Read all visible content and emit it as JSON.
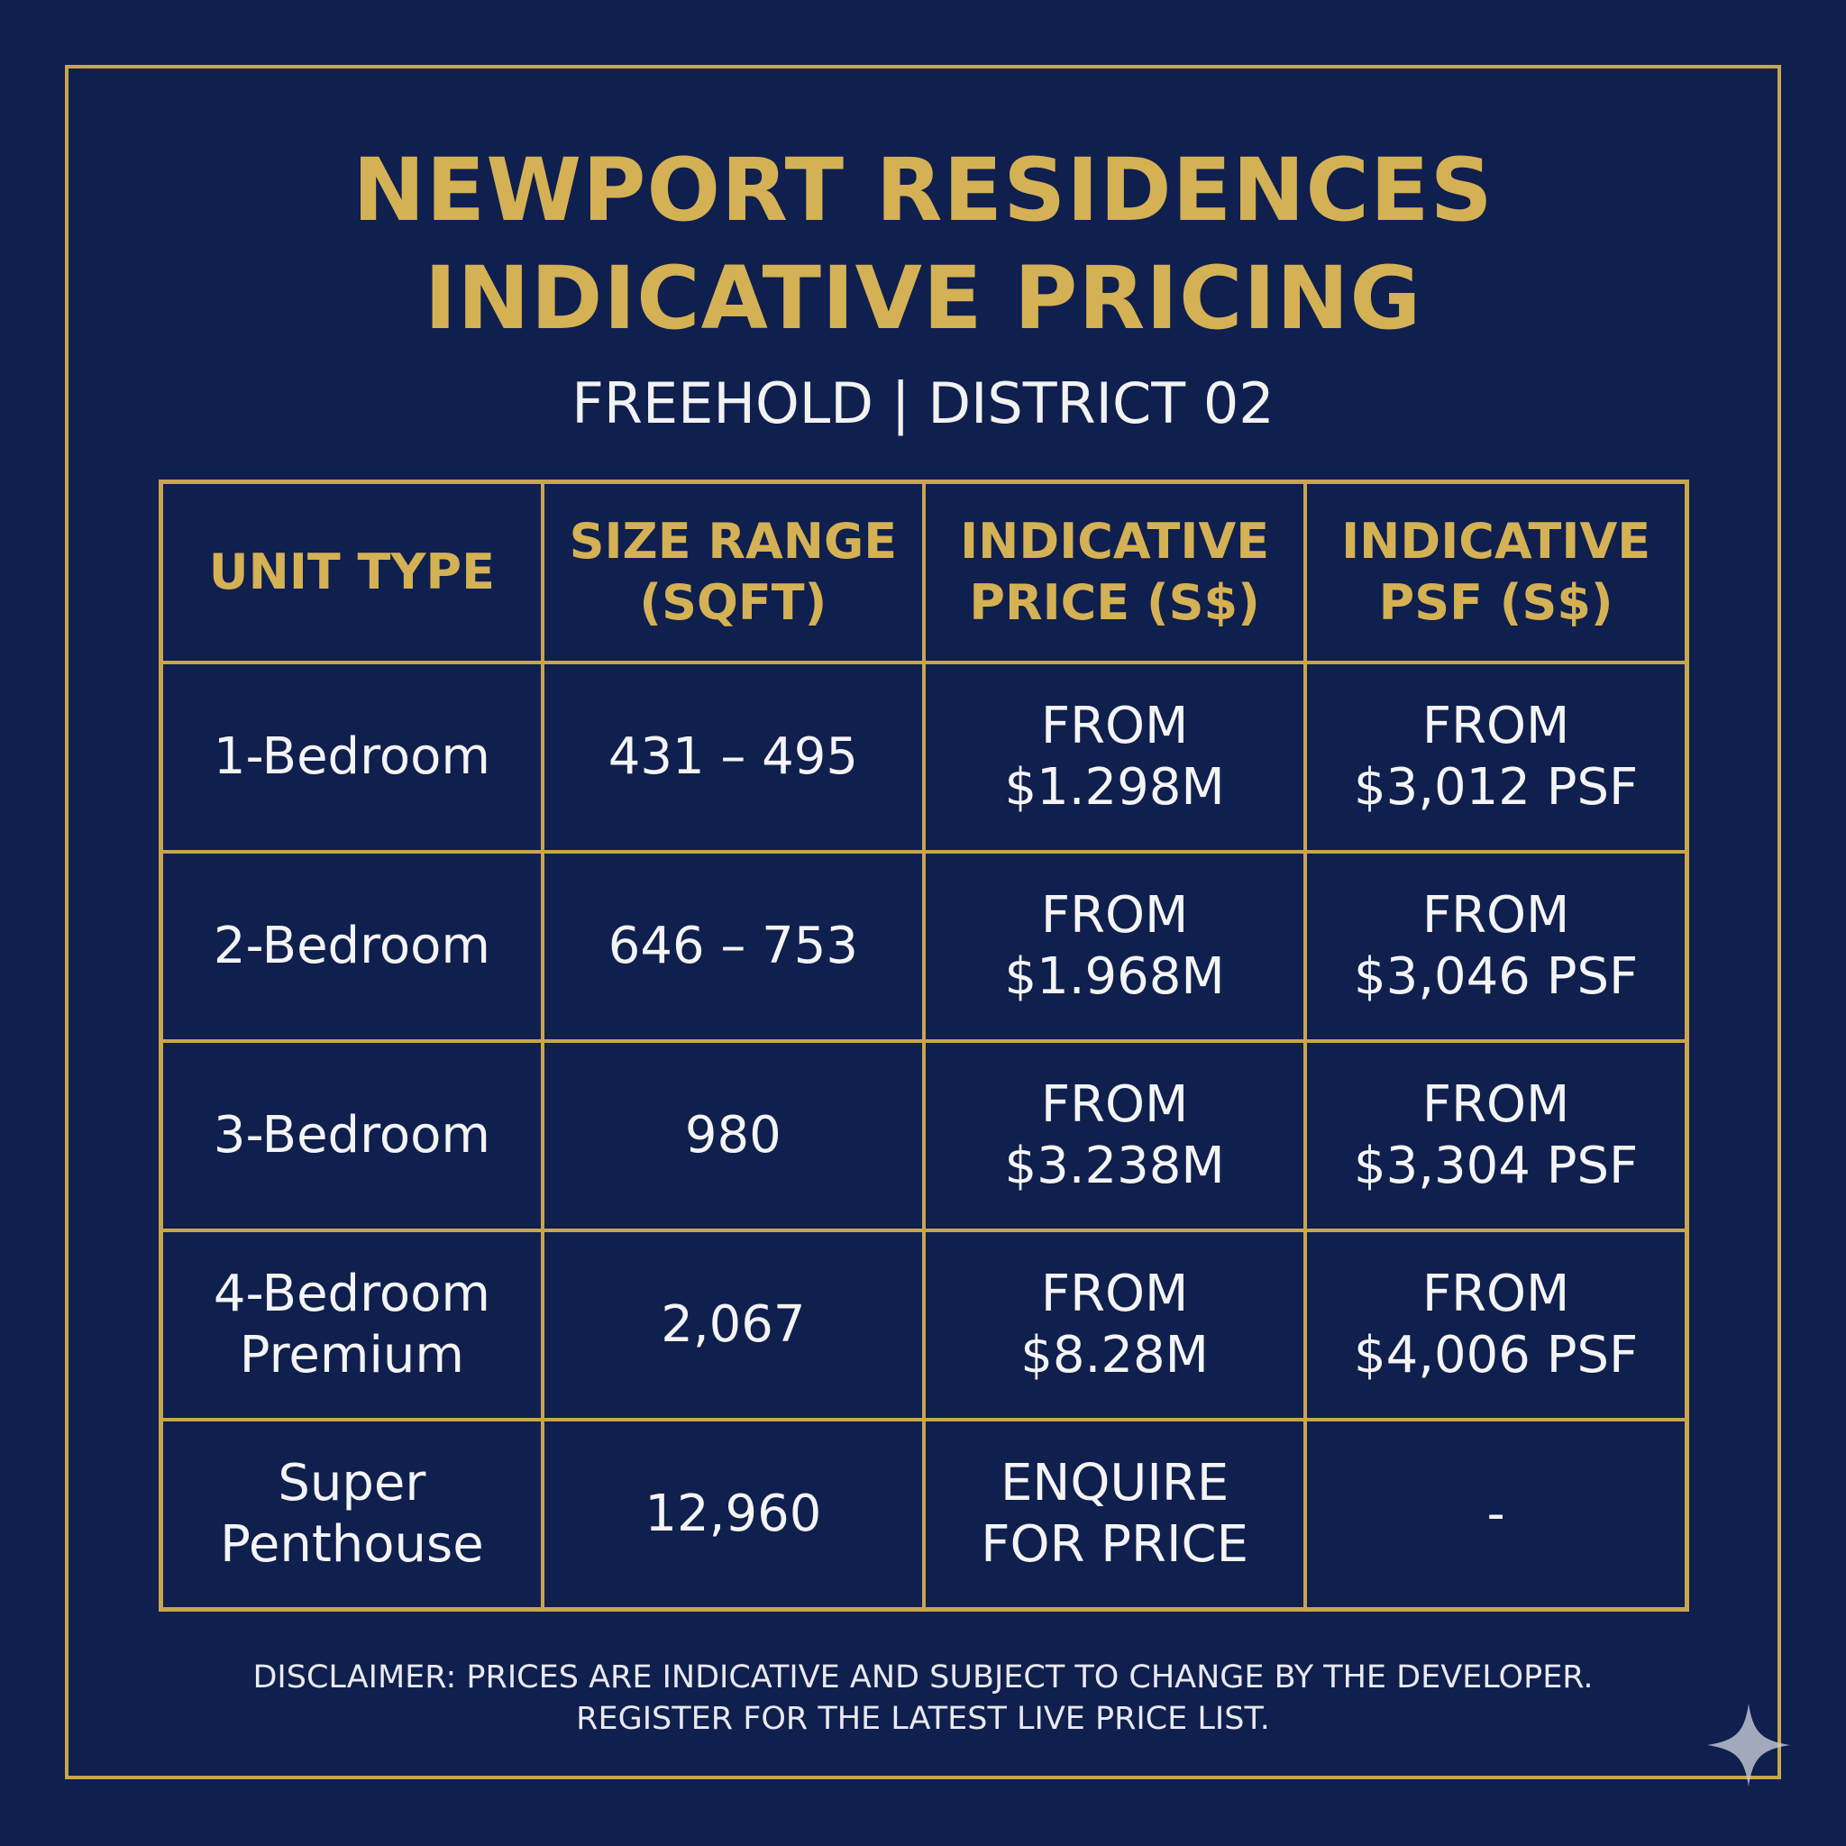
{
  "header": {
    "title_line1": "NEWPORT RESIDENCES",
    "title_line2": "INDICATIVE PRICING",
    "subtitle": "FREEHOLD | DISTRICT 02"
  },
  "table": {
    "headers": [
      [
        "UNIT TYPE"
      ],
      [
        "SIZE RANGE",
        "(SQFT)"
      ],
      [
        "INDICATIVE",
        "PRICE (S$)"
      ],
      [
        "INDICATIVE",
        "PSF (S$)"
      ]
    ],
    "rows": [
      {
        "unit_type": [
          "1-Bedroom"
        ],
        "size": [
          "431 – 495"
        ],
        "price": [
          "FROM",
          "$1.298M"
        ],
        "psf": [
          "FROM",
          "$3,012 PSF"
        ]
      },
      {
        "unit_type": [
          "2-Bedroom"
        ],
        "size": [
          "646 – 753"
        ],
        "price": [
          "FROM",
          "$1.968M"
        ],
        "psf": [
          "FROM",
          "$3,046 PSF"
        ]
      },
      {
        "unit_type": [
          "3-Bedroom"
        ],
        "size": [
          "980"
        ],
        "price": [
          "FROM",
          "$3.238M"
        ],
        "psf": [
          "FROM",
          "$3,304 PSF"
        ]
      },
      {
        "unit_type": [
          "4-Bedroom",
          "Premium"
        ],
        "size": [
          "2,067"
        ],
        "price": [
          "FROM",
          "$8.28M"
        ],
        "psf": [
          "FROM",
          "$4,006 PSF"
        ]
      },
      {
        "unit_type": [
          "Super",
          "Penthouse"
        ],
        "size": [
          "12,960"
        ],
        "price": [
          "ENQUIRE",
          "FOR PRICE"
        ],
        "psf": [
          "-"
        ]
      }
    ]
  },
  "disclaimer": {
    "line1": "DISCLAIMER: PRICES ARE INDICATIVE AND SUBJECT TO CHANGE BY THE DEVELOPER.",
    "line2": "REGISTER FOR THE LATEST LIVE PRICE LIST."
  },
  "icons": {
    "watermark": "sparkle-icon"
  },
  "colors": {
    "background": "#0f1f4e",
    "gold": "#c9a54e",
    "title_gold": "#d4b154",
    "text": "#f4f4f4"
  }
}
